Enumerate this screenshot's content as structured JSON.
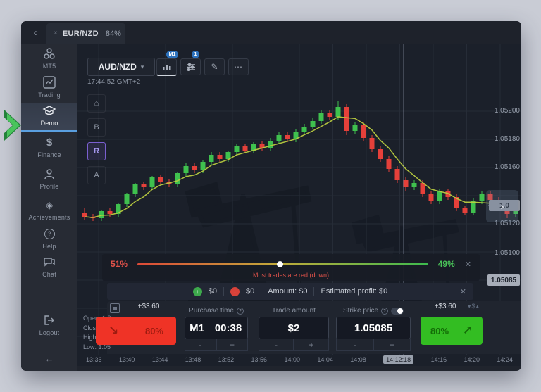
{
  "topbar": {
    "back_icon": "‹",
    "tab": {
      "close_icon": "×",
      "symbol": "EUR/NZD",
      "payout": "84%"
    }
  },
  "sidebar": {
    "items": [
      {
        "label": "MT5"
      },
      {
        "label": "Trading"
      },
      {
        "label": "Demo"
      },
      {
        "label": "Finance"
      },
      {
        "label": "Profile"
      },
      {
        "label": "Achievements"
      },
      {
        "label": "Help"
      },
      {
        "label": "Chat"
      },
      {
        "label": "Logout"
      }
    ],
    "collapse_icon": "←"
  },
  "chart": {
    "symbol": "AUD/NZD",
    "symbol_caret": "▾",
    "clock": "17:44:52 GMT+2",
    "badges": {
      "timeframe": "M1",
      "indicators": "1"
    },
    "header_more_icon": "⋯",
    "header_pencil_icon": "✎",
    "tools": {
      "home": "⌂",
      "b": "B",
      "r": "R",
      "a": "A"
    },
    "price_axis": [
      "1.05200",
      "1.05180",
      "1.05160",
      "1.05120",
      "1.05100"
    ],
    "current_price_tag": "1.0",
    "strike_price_tag": "1.05085",
    "scroll_right_icon": "›",
    "time_axis": [
      "13:36",
      "13:40",
      "13:44",
      "13:48",
      "13:52",
      "13:56",
      "14:00",
      "14:04",
      "14:08",
      "14:12:18",
      "14:16",
      "14:20",
      "14:24"
    ],
    "highlighted_time": "14:12:18"
  },
  "sentiment": {
    "red_pct": "51%",
    "green_pct": "49%",
    "message": "Most trades are red (down)",
    "close_icon": "✕",
    "dot_position_pct": 48
  },
  "trade_info": {
    "up_arrow": "↑",
    "up_value": "$0",
    "down_arrow": "↓",
    "down_value": "$0",
    "amount": "Amount: $0",
    "estimated_profit": "Estimated profit: $0",
    "close_icon": "✕"
  },
  "controls": {
    "ohlc": {
      "open": "Open: 1.0",
      "close": "Close: 1.0",
      "high": "High: 1.05",
      "low": "Low: 1.05"
    },
    "sell": {
      "payout": "+$3.60",
      "percent": "80%",
      "arrow": "↘"
    },
    "buy": {
      "payout": "+$3.60",
      "percent": "80%",
      "arrow": "↗"
    },
    "purchase_time": {
      "label": "Purchase time",
      "help": "?",
      "mode": "M1",
      "value": "00:38"
    },
    "trade_amount": {
      "label": "Trade amount",
      "value": "$2"
    },
    "strike_price": {
      "label": "Strike price",
      "help": "?",
      "value": "1.05085"
    },
    "stepper": {
      "minus": "-",
      "plus": "+"
    },
    "payout_tools": "▾$▴"
  },
  "chart_data": {
    "type": "candlestick",
    "symbol": "AUD/NZD",
    "timeframe": "M1",
    "price_axis_labels": [
      1.052,
      1.0518,
      1.0516,
      1.0512,
      1.051
    ],
    "time_axis_labels": [
      "13:36",
      "13:40",
      "13:44",
      "13:48",
      "13:52",
      "13:56",
      "14:00",
      "14:04",
      "14:08",
      "14:12:18",
      "14:16",
      "14:20",
      "14:24"
    ],
    "strike_price": 1.05085,
    "current_price_estimate": 1.05133,
    "price_base": 1.05,
    "note": "candle values are offsets: price = 1.05 + v/100000, order [open,high,low,close]",
    "ma_period": 5,
    "colors": {
      "up": "#3fc14e",
      "down": "#e5403a",
      "ma": "#b9cc3f",
      "grid": "#262c37"
    },
    "candles": [
      [
        128,
        131,
        123,
        125
      ],
      [
        125,
        127,
        122,
        124
      ],
      [
        124,
        130,
        122,
        129
      ],
      [
        129,
        131,
        125,
        127
      ],
      [
        127,
        135,
        125,
        134
      ],
      [
        134,
        142,
        132,
        141
      ],
      [
        141,
        149,
        139,
        148
      ],
      [
        148,
        150,
        144,
        146
      ],
      [
        146,
        154,
        144,
        153
      ],
      [
        153,
        155,
        148,
        150
      ],
      [
        150,
        152,
        146,
        148
      ],
      [
        148,
        157,
        146,
        156
      ],
      [
        156,
        163,
        154,
        161
      ],
      [
        161,
        163,
        156,
        158
      ],
      [
        158,
        165,
        156,
        164
      ],
      [
        164,
        171,
        162,
        169
      ],
      [
        169,
        171,
        164,
        166
      ],
      [
        166,
        172,
        164,
        171
      ],
      [
        171,
        177,
        169,
        175
      ],
      [
        175,
        177,
        170,
        172
      ],
      [
        172,
        178,
        170,
        177
      ],
      [
        177,
        179,
        172,
        174
      ],
      [
        174,
        181,
        172,
        179
      ],
      [
        179,
        185,
        177,
        183
      ],
      [
        183,
        185,
        178,
        180
      ],
      [
        180,
        187,
        178,
        185
      ],
      [
        185,
        191,
        183,
        189
      ],
      [
        189,
        195,
        187,
        193
      ],
      [
        193,
        201,
        191,
        199
      ],
      [
        199,
        201,
        194,
        196
      ],
      [
        196,
        207,
        194,
        203
      ],
      [
        203,
        205,
        183,
        186
      ],
      [
        186,
        192,
        184,
        190
      ],
      [
        190,
        192,
        179,
        181
      ],
      [
        181,
        183,
        171,
        173
      ],
      [
        173,
        175,
        164,
        166
      ],
      [
        166,
        168,
        157,
        159
      ],
      [
        159,
        161,
        149,
        151
      ],
      [
        151,
        153,
        143,
        146
      ],
      [
        146,
        151,
        144,
        149
      ],
      [
        149,
        151,
        139,
        141
      ],
      [
        141,
        143,
        134,
        136
      ],
      [
        136,
        145,
        134,
        143
      ],
      [
        143,
        145,
        137,
        139
      ],
      [
        139,
        141,
        129,
        131
      ],
      [
        131,
        133,
        126,
        128
      ],
      [
        128,
        138,
        126,
        136
      ],
      [
        136,
        143,
        134,
        141
      ],
      [
        141,
        143,
        135,
        137
      ],
      [
        137,
        139,
        129,
        131
      ],
      [
        131,
        133,
        124,
        127
      ],
      [
        127,
        135,
        125,
        133
      ]
    ]
  }
}
